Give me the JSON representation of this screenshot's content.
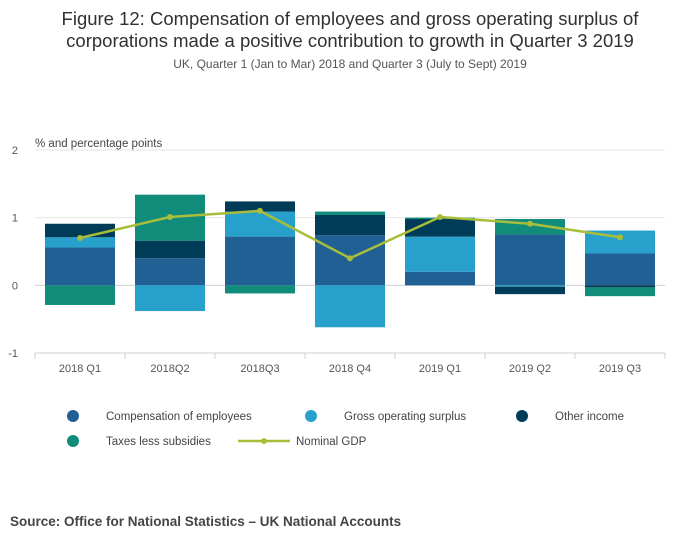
{
  "title_line1": "Figure 12: Compensation of employees and gross operating surplus of",
  "title_line2": "corporations made a positive contribution to growth in Quarter 3 2019",
  "subtitle": "UK, Quarter 1 (Jan to Mar) 2018 and Quarter 3 (July to Sept) 2019",
  "source": "Source: Office for National Statistics – UK National Accounts",
  "colors": {
    "compensation": "#206095",
    "gross_operating_surplus": "#27a0cc",
    "other_income": "#003c57",
    "taxes": "#118c7b",
    "gdp": "#a8bd3a"
  },
  "chart_data": {
    "type": "bar",
    "stacked": true,
    "ylabel": "% and percentage points",
    "ylim": [
      -1,
      2
    ],
    "yticks": [
      2,
      1,
      0,
      -1
    ],
    "grid": true,
    "legend_position": "bottom",
    "categories": [
      "2018 Q1",
      "2018Q2",
      "2018Q3",
      "2018 Q4",
      "2019 Q1",
      "2019 Q2",
      "2019 Q3"
    ],
    "series": [
      {
        "name": "Compensation of employees",
        "type": "bar",
        "color": "#206095",
        "values": [
          0.56,
          0.4,
          0.72,
          0.74,
          0.2,
          0.75,
          0.47
        ]
      },
      {
        "name": "Gross operating surplus",
        "type": "bar",
        "color": "#27a0cc",
        "values": [
          0.15,
          -0.38,
          0.37,
          -0.62,
          0.52,
          -0.02,
          0.34
        ]
      },
      {
        "name": "Other income",
        "type": "bar",
        "color": "#003c57",
        "values": [
          0.2,
          0.26,
          0.15,
          0.3,
          0.26,
          -0.11,
          -0.03
        ]
      },
      {
        "name": "Taxes less subsidies",
        "type": "bar",
        "color": "#118c7b",
        "values": [
          -0.29,
          0.68,
          -0.12,
          0.05,
          0.02,
          0.23,
          -0.13
        ]
      },
      {
        "name": "Nominal GDP",
        "type": "line",
        "color": "#a8bd3a",
        "values": [
          0.7,
          1.01,
          1.1,
          0.4,
          1.01,
          0.91,
          0.71
        ]
      }
    ]
  }
}
